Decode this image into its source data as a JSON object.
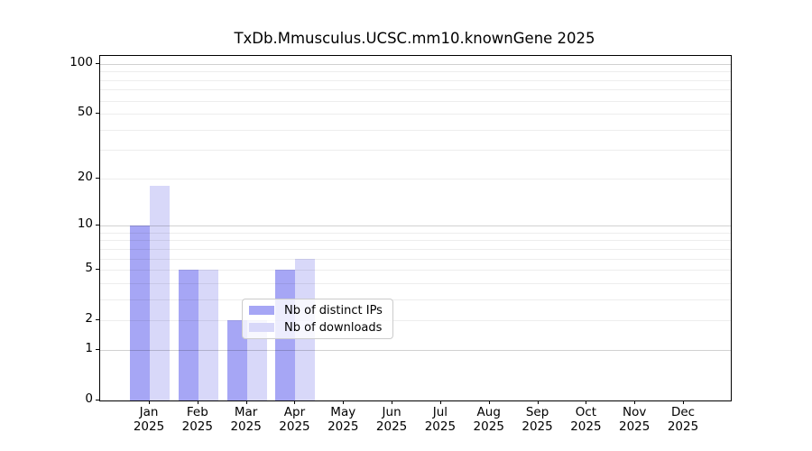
{
  "title": "TxDb.Mmusculus.UCSC.mm10.knownGene 2025",
  "chart_data": {
    "type": "bar",
    "title": "TxDb.Mmusculus.UCSC.mm10.knownGene 2025",
    "y_scale": "log1p",
    "ylim": [
      0,
      112
    ],
    "grid": "on",
    "categories": [
      "Jan",
      "Feb",
      "Mar",
      "Apr",
      "May",
      "Jun",
      "Jul",
      "Aug",
      "Sep",
      "Oct",
      "Nov",
      "Dec"
    ],
    "year_label": "2025",
    "series": [
      {
        "name": "Nb of distinct IPs",
        "color": "#a6a6f5",
        "values": [
          10,
          5,
          2,
          5,
          0,
          0,
          0,
          0,
          0,
          0,
          0,
          0
        ]
      },
      {
        "name": "Nb of downloads",
        "color": "#d8d8f9",
        "values": [
          18,
          5,
          2,
          6,
          0,
          0,
          0,
          0,
          0,
          0,
          0,
          0
        ]
      }
    ],
    "y_ticks": [
      0,
      1,
      2,
      5,
      10,
      20,
      50,
      100
    ],
    "grid_major": [
      1,
      10,
      100
    ],
    "grid_minor": [
      2,
      3,
      4,
      5,
      6,
      7,
      8,
      9,
      20,
      30,
      40,
      50,
      60,
      70,
      80,
      90
    ],
    "legend": {
      "position": "lower center",
      "items": [
        "Nb of distinct IPs",
        "Nb of downloads"
      ]
    }
  }
}
